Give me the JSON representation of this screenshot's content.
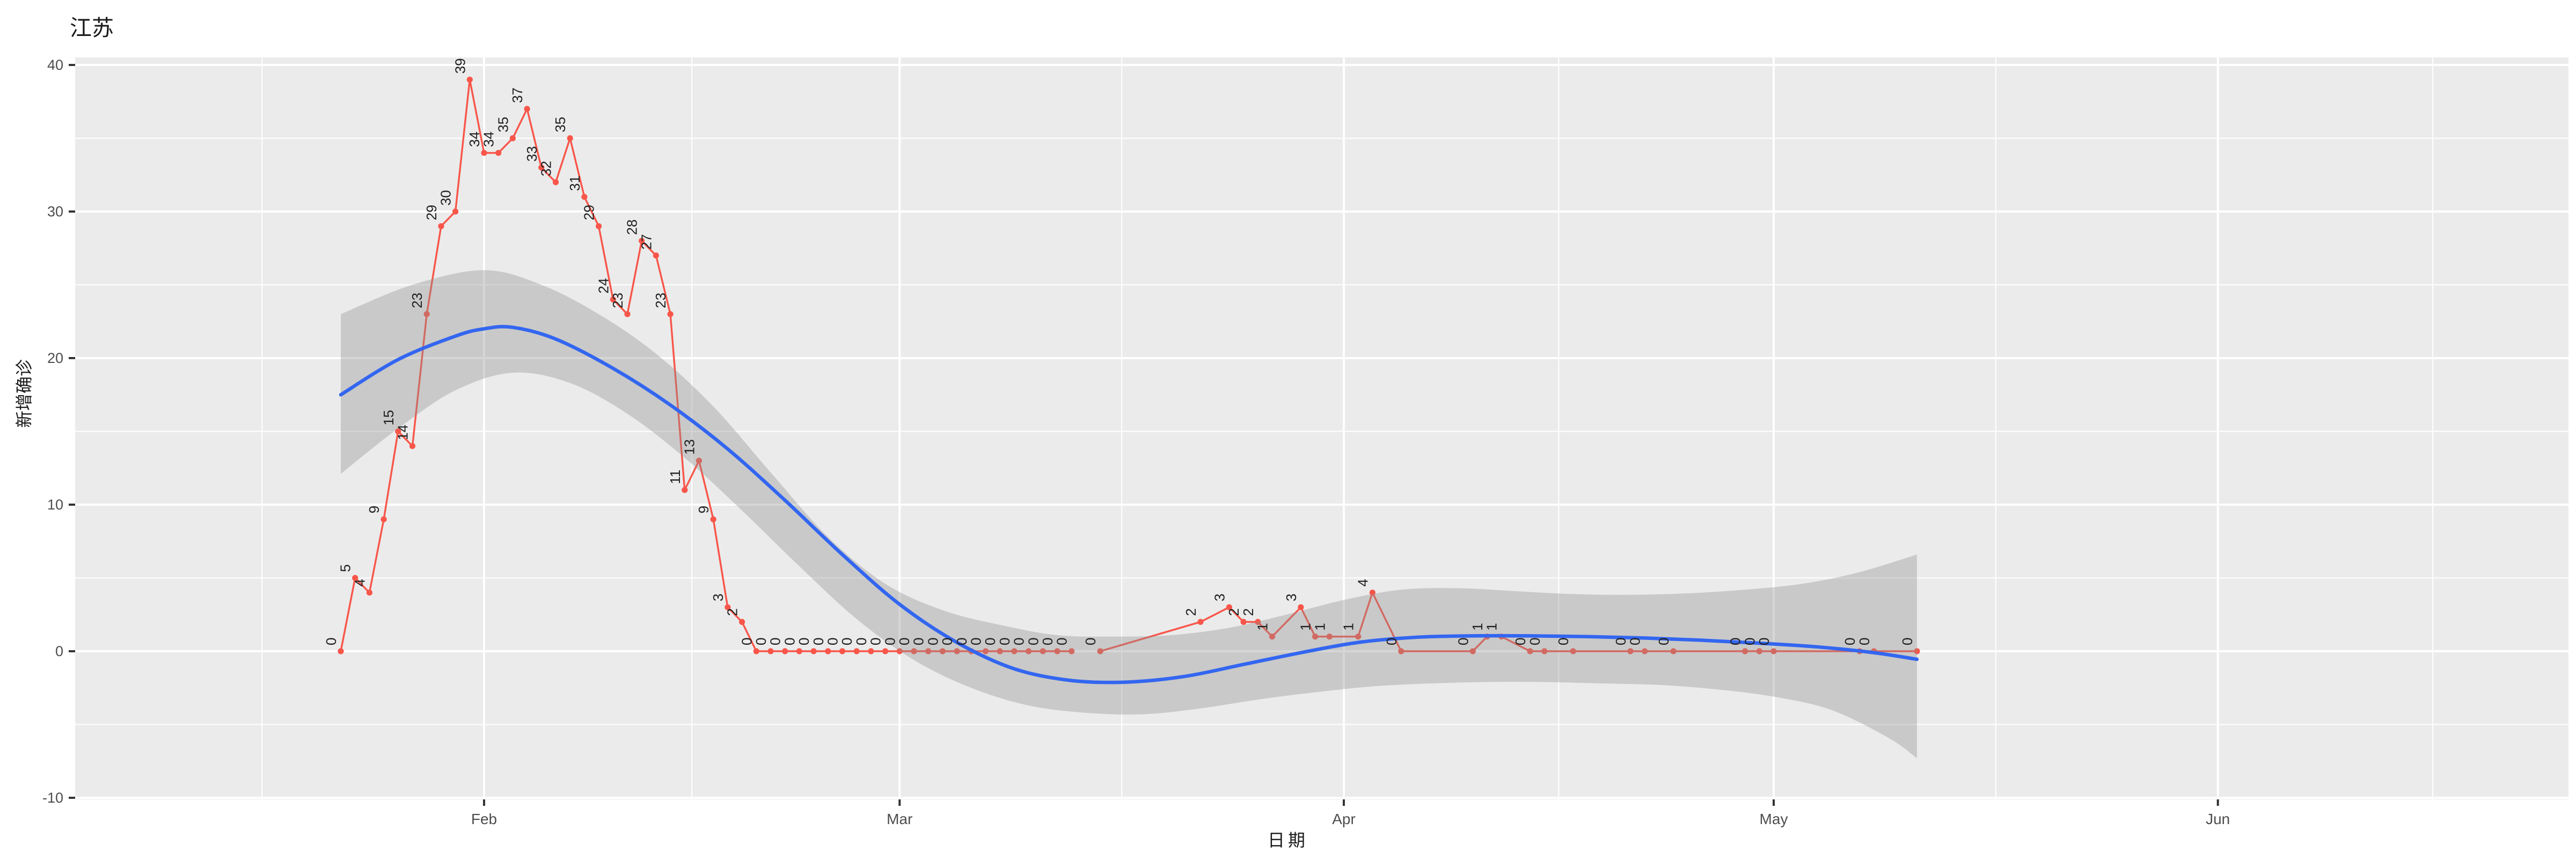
{
  "title": "江苏",
  "axes": {
    "x_label": "日期",
    "y_label": "新增确诊",
    "x_ticks": [
      {
        "label": "Feb",
        "day": 10
      },
      {
        "label": "Mar",
        "day": 39
      },
      {
        "label": "Apr",
        "day": 70
      },
      {
        "label": "May",
        "day": 100
      },
      {
        "label": "Jun",
        "day": 131
      }
    ],
    "x_minor_days": [
      -5.5,
      24.5,
      54.5,
      85,
      115.5,
      146
    ],
    "y_ticks": [
      40,
      30,
      20,
      10,
      0,
      -10
    ],
    "y_minor": [
      35,
      25,
      15,
      5,
      -5
    ]
  },
  "colors": {
    "panel_bg": "#EBEBEB",
    "grid": "#FFFFFF",
    "red_line": "#F8564A",
    "point_fill": "#F8564A",
    "label_text": "#1f1f1f",
    "smooth_line": "#3366F0",
    "ribbon_fill": "rgba(140,140,140,0.36)",
    "tick_text": "#4D4D4D",
    "tick_mark": "#333333"
  },
  "chart_data": {
    "type": "line",
    "title": "江苏",
    "xlabel": "日期",
    "ylabel": "新增确诊",
    "ylim": [
      -10,
      40
    ],
    "x_range_days_from_jan22": [
      0,
      110
    ],
    "grid": true,
    "legend": "none",
    "series": [
      {
        "name": "daily-new-confirmed-segment-1",
        "points": [
          {
            "date": "Jan 22",
            "day": 0,
            "value": 0
          },
          {
            "date": "Jan 23",
            "day": 1,
            "value": 5
          },
          {
            "date": "Jan 24",
            "day": 2,
            "value": 4
          },
          {
            "date": "Jan 25",
            "day": 3,
            "value": 9
          },
          {
            "date": "Jan 26",
            "day": 4,
            "value": 15
          },
          {
            "date": "Jan 27",
            "day": 5,
            "value": 14
          },
          {
            "date": "Jan 28",
            "day": 6,
            "value": 23
          },
          {
            "date": "Jan 29",
            "day": 7,
            "value": 29
          },
          {
            "date": "Jan 30",
            "day": 8,
            "value": 30
          },
          {
            "date": "Jan 31",
            "day": 9,
            "value": 39
          },
          {
            "date": "Feb 1",
            "day": 10,
            "value": 34
          },
          {
            "date": "Feb 2",
            "day": 11,
            "value": 34
          },
          {
            "date": "Feb 3",
            "day": 12,
            "value": 35
          },
          {
            "date": "Feb 4",
            "day": 13,
            "value": 37
          },
          {
            "date": "Feb 5",
            "day": 14,
            "value": 33
          },
          {
            "date": "Feb 6",
            "day": 15,
            "value": 32
          },
          {
            "date": "Feb 7",
            "day": 16,
            "value": 35
          },
          {
            "date": "Feb 8",
            "day": 17,
            "value": 31
          },
          {
            "date": "Feb 9",
            "day": 18,
            "value": 29
          },
          {
            "date": "Feb 10",
            "day": 19,
            "value": 24
          },
          {
            "date": "Feb 11",
            "day": 20,
            "value": 23
          },
          {
            "date": "Feb 12",
            "day": 21,
            "value": 28
          },
          {
            "date": "Feb 13",
            "day": 22,
            "value": 27
          },
          {
            "date": "Feb 14",
            "day": 23,
            "value": 23
          },
          {
            "date": "Feb 15",
            "day": 24,
            "value": 11
          },
          {
            "date": "Feb 16",
            "day": 25,
            "value": 13
          },
          {
            "date": "Feb 17",
            "day": 26,
            "value": 9
          },
          {
            "date": "Feb 18",
            "day": 27,
            "value": 3
          },
          {
            "date": "Feb 19",
            "day": 28,
            "value": 2
          },
          {
            "date": "Feb 20",
            "day": 29,
            "value": 0
          },
          {
            "date": "Feb 21",
            "day": 30,
            "value": 0
          },
          {
            "date": "Feb 22",
            "day": 31,
            "value": 0
          },
          {
            "date": "Feb 23",
            "day": 32,
            "value": 0
          },
          {
            "date": "Feb 24",
            "day": 33,
            "value": 0
          },
          {
            "date": "Feb 25",
            "day": 34,
            "value": 0
          },
          {
            "date": "Feb 26",
            "day": 35,
            "value": 0
          },
          {
            "date": "Feb 27",
            "day": 36,
            "value": 0
          },
          {
            "date": "Feb 28",
            "day": 37,
            "value": 0
          },
          {
            "date": "Feb 29",
            "day": 38,
            "value": 0
          },
          {
            "date": "Mar 1",
            "day": 39,
            "value": 0
          },
          {
            "date": "Mar 2",
            "day": 40,
            "value": 0
          },
          {
            "date": "Mar 3",
            "day": 41,
            "value": 0
          },
          {
            "date": "Mar 4",
            "day": 42,
            "value": 0
          },
          {
            "date": "Mar 5",
            "day": 43,
            "value": 0
          },
          {
            "date": "Mar 6",
            "day": 44,
            "value": 0
          },
          {
            "date": "Mar 7",
            "day": 45,
            "value": 0
          },
          {
            "date": "Mar 8",
            "day": 46,
            "value": 0
          },
          {
            "date": "Mar 9",
            "day": 47,
            "value": 0
          },
          {
            "date": "Mar 10",
            "day": 48,
            "value": 0
          },
          {
            "date": "Mar 11",
            "day": 49,
            "value": 0
          },
          {
            "date": "Mar 12",
            "day": 50,
            "value": 0
          },
          {
            "date": "Mar 13",
            "day": 51,
            "value": 0
          }
        ]
      },
      {
        "name": "daily-new-confirmed-segment-2",
        "points": [
          {
            "date": "Mar 15",
            "day": 53,
            "value": 0
          },
          {
            "date": "Mar 22",
            "day": 60,
            "value": 2
          },
          {
            "date": "Mar 24",
            "day": 62,
            "value": 3
          },
          {
            "date": "Mar 25",
            "day": 63,
            "value": 2
          },
          {
            "date": "Mar 26",
            "day": 64,
            "value": 2
          },
          {
            "date": "Mar 27",
            "day": 65,
            "value": 1
          },
          {
            "date": "Mar 29",
            "day": 67,
            "value": 3
          },
          {
            "date": "Mar 30",
            "day": 68,
            "value": 1
          },
          {
            "date": "Mar 31",
            "day": 69,
            "value": 1
          },
          {
            "date": "Apr 2",
            "day": 71,
            "value": 1
          },
          {
            "date": "Apr 3",
            "day": 72,
            "value": 4
          },
          {
            "date": "Apr 5",
            "day": 74,
            "value": 0
          },
          {
            "date": "Apr 10",
            "day": 79,
            "value": 0
          },
          {
            "date": "Apr 11",
            "day": 80,
            "value": 1
          },
          {
            "date": "Apr 12",
            "day": 81,
            "value": 1
          },
          {
            "date": "Apr 14",
            "day": 83,
            "value": 0
          },
          {
            "date": "Apr 15",
            "day": 84,
            "value": 0
          },
          {
            "date": "Apr 17",
            "day": 86,
            "value": 0
          },
          {
            "date": "Apr 21",
            "day": 90,
            "value": 0
          },
          {
            "date": "Apr 22",
            "day": 91,
            "value": 0
          },
          {
            "date": "Apr 24",
            "day": 93,
            "value": 0
          },
          {
            "date": "Apr 29",
            "day": 98,
            "value": 0
          },
          {
            "date": "Apr 30",
            "day": 99,
            "value": 0
          },
          {
            "date": "May 1",
            "day": 100,
            "value": 0
          },
          {
            "date": "May 7",
            "day": 106,
            "value": 0
          },
          {
            "date": "May 8",
            "day": 107,
            "value": 0
          },
          {
            "date": "May 11",
            "day": 110,
            "value": 0
          }
        ]
      }
    ],
    "smooth": {
      "name": "loess-smooth",
      "points": [
        {
          "day": 0,
          "value": 17.5
        },
        {
          "day": 4,
          "value": 19.9
        },
        {
          "day": 8,
          "value": 21.5
        },
        {
          "day": 10,
          "value": 22.0
        },
        {
          "day": 12,
          "value": 22.1
        },
        {
          "day": 15,
          "value": 21.3
        },
        {
          "day": 19,
          "value": 19.3
        },
        {
          "day": 23,
          "value": 16.8
        },
        {
          "day": 27,
          "value": 13.8
        },
        {
          "day": 31,
          "value": 10.3
        },
        {
          "day": 35,
          "value": 6.6
        },
        {
          "day": 39,
          "value": 3.2
        },
        {
          "day": 43,
          "value": 0.6
        },
        {
          "day": 47,
          "value": -1.2
        },
        {
          "day": 51,
          "value": -2.0
        },
        {
          "day": 55,
          "value": -2.1
        },
        {
          "day": 59,
          "value": -1.7
        },
        {
          "day": 63,
          "value": -0.9
        },
        {
          "day": 67,
          "value": -0.1
        },
        {
          "day": 71,
          "value": 0.6
        },
        {
          "day": 75,
          "value": 0.95
        },
        {
          "day": 79,
          "value": 1.05
        },
        {
          "day": 83,
          "value": 1.05
        },
        {
          "day": 87,
          "value": 1.0
        },
        {
          "day": 91,
          "value": 0.9
        },
        {
          "day": 95,
          "value": 0.75
        },
        {
          "day": 99,
          "value": 0.55
        },
        {
          "day": 103,
          "value": 0.3
        },
        {
          "day": 107,
          "value": -0.1
        },
        {
          "day": 110,
          "value": -0.55
        }
      ],
      "ci_upper": [
        {
          "day": 0,
          "value": 23.0
        },
        {
          "day": 5,
          "value": 25.0
        },
        {
          "day": 10,
          "value": 26.0
        },
        {
          "day": 14,
          "value": 25.0
        },
        {
          "day": 18,
          "value": 23.0
        },
        {
          "day": 22,
          "value": 20.3
        },
        {
          "day": 26,
          "value": 16.7
        },
        {
          "day": 30,
          "value": 12.2
        },
        {
          "day": 34,
          "value": 7.8
        },
        {
          "day": 38,
          "value": 4.6
        },
        {
          "day": 42,
          "value": 2.8
        },
        {
          "day": 46,
          "value": 1.8
        },
        {
          "day": 50,
          "value": 1.1
        },
        {
          "day": 54,
          "value": 1.0
        },
        {
          "day": 58,
          "value": 1.1
        },
        {
          "day": 62,
          "value": 1.6
        },
        {
          "day": 66,
          "value": 2.5
        },
        {
          "day": 70,
          "value": 3.5
        },
        {
          "day": 74,
          "value": 4.2
        },
        {
          "day": 78,
          "value": 4.3
        },
        {
          "day": 82,
          "value": 4.1
        },
        {
          "day": 86,
          "value": 3.9
        },
        {
          "day": 90,
          "value": 3.85
        },
        {
          "day": 94,
          "value": 3.95
        },
        {
          "day": 98,
          "value": 4.2
        },
        {
          "day": 102,
          "value": 4.6
        },
        {
          "day": 106,
          "value": 5.4
        },
        {
          "day": 110,
          "value": 6.6
        }
      ],
      "ci_lower": [
        {
          "day": 0,
          "value": 12.1
        },
        {
          "day": 4,
          "value": 15.2
        },
        {
          "day": 8,
          "value": 17.8
        },
        {
          "day": 12,
          "value": 19.0
        },
        {
          "day": 16,
          "value": 18.3
        },
        {
          "day": 20,
          "value": 16.2
        },
        {
          "day": 24,
          "value": 13.2
        },
        {
          "day": 28,
          "value": 9.6
        },
        {
          "day": 32,
          "value": 5.8
        },
        {
          "day": 36,
          "value": 2.2
        },
        {
          "day": 40,
          "value": -0.6
        },
        {
          "day": 44,
          "value": -2.5
        },
        {
          "day": 48,
          "value": -3.7
        },
        {
          "day": 52,
          "value": -4.2
        },
        {
          "day": 56,
          "value": -4.3
        },
        {
          "day": 60,
          "value": -3.9
        },
        {
          "day": 64,
          "value": -3.3
        },
        {
          "day": 68,
          "value": -2.8
        },
        {
          "day": 72,
          "value": -2.4
        },
        {
          "day": 76,
          "value": -2.2
        },
        {
          "day": 80,
          "value": -2.1
        },
        {
          "day": 84,
          "value": -2.1
        },
        {
          "day": 88,
          "value": -2.2
        },
        {
          "day": 92,
          "value": -2.3
        },
        {
          "day": 96,
          "value": -2.6
        },
        {
          "day": 100,
          "value": -3.1
        },
        {
          "day": 104,
          "value": -4.0
        },
        {
          "day": 108,
          "value": -5.9
        },
        {
          "day": 110,
          "value": -7.3
        }
      ]
    }
  }
}
